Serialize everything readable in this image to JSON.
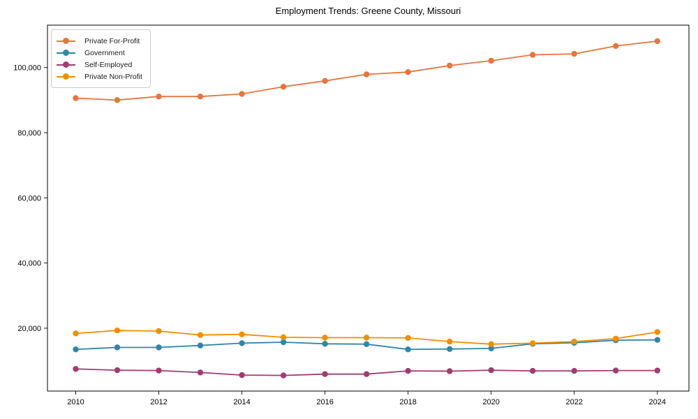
{
  "chart_data": {
    "type": "line",
    "title": "Employment Trends: Greene County, Missouri",
    "xlabel": "",
    "ylabel": "",
    "grid": false,
    "legend_position": "upper-left",
    "background_color": "#ffffff",
    "text_color": "#000000",
    "x": [
      2010,
      2011,
      2012,
      2013,
      2014,
      2015,
      2016,
      2017,
      2018,
      2019,
      2020,
      2021,
      2022,
      2023,
      2024
    ],
    "x_ticks": [
      2010,
      2012,
      2014,
      2016,
      2018,
      2020,
      2022,
      2024
    ],
    "x_tick_labels": [
      "2010",
      "2012",
      "2014",
      "2016",
      "2018",
      "2020",
      "2022",
      "2024"
    ],
    "y_ticks": [
      20000,
      40000,
      60000,
      80000,
      100000
    ],
    "y_tick_labels": [
      "20,000",
      "40,000",
      "60,000",
      "80,000",
      "100,000"
    ],
    "xlim": [
      2009.32,
      2024.76
    ],
    "ylim": [
      700,
      113000
    ],
    "series": [
      {
        "name": "Private For-Profit",
        "color": "#e8743e",
        "values": [
          90600,
          90000,
          91100,
          91100,
          91900,
          94100,
          95900,
          97900,
          98600,
          100600,
          102100,
          103900,
          104200,
          106600,
          108100
        ]
      },
      {
        "name": "Government",
        "color": "#2e86ab",
        "values": [
          13500,
          14100,
          14100,
          14700,
          15400,
          15700,
          15200,
          15100,
          13500,
          13600,
          13800,
          15200,
          15500,
          16300,
          16400
        ]
      },
      {
        "name": "Self-Employed",
        "color": "#a23b72",
        "values": [
          7500,
          7100,
          7000,
          6400,
          5600,
          5500,
          5900,
          5900,
          6900,
          6800,
          7100,
          6900,
          6900,
          7000,
          7000
        ]
      },
      {
        "name": "Private Non-Profit",
        "color": "#f18f01",
        "values": [
          18400,
          19300,
          19100,
          17900,
          18100,
          17200,
          17100,
          17100,
          17000,
          15900,
          15100,
          15400,
          15900,
          16800,
          18800
        ]
      }
    ]
  }
}
